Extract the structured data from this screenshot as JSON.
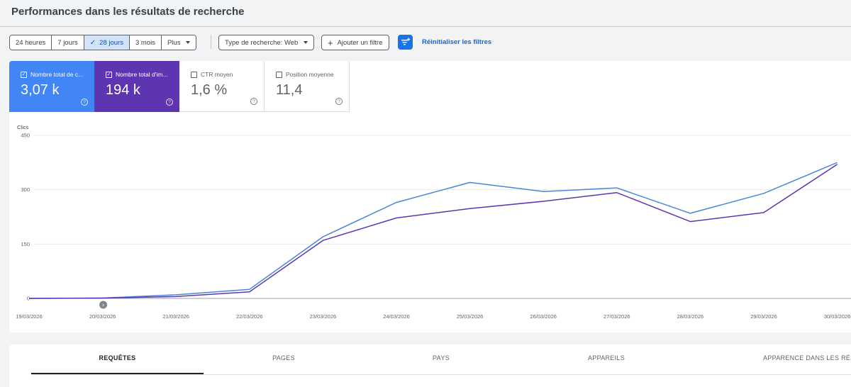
{
  "page": {
    "title": "Performances dans les résultats de recherche"
  },
  "toolbar": {
    "ranges": [
      {
        "label": "24 heures",
        "active": false
      },
      {
        "label": "7 jours",
        "active": false
      },
      {
        "label": "28 jours",
        "active": true
      },
      {
        "label": "3 mois",
        "active": false
      },
      {
        "label": "Plus",
        "active": false
      }
    ],
    "search_type_label": "Type de recherche: Web",
    "add_filter_label": "Ajouter un filtre",
    "reset_label": "Réinitialiser les filtres",
    "plus_symbol": "+",
    "check_symbol": "✓"
  },
  "metrics": [
    {
      "label": "Nombre total de c...",
      "value": "3,07 k",
      "checked": true,
      "color": "#4285f4"
    },
    {
      "label": "Nombre total d'im...",
      "value": "194 k",
      "checked": true,
      "color": "#5e35b1"
    },
    {
      "label": "CTR moyen",
      "value": "1,6 %",
      "checked": false
    },
    {
      "label": "Position moyenne",
      "value": "11,4",
      "checked": false
    }
  ],
  "help_symbol": "?",
  "chart_data": {
    "type": "line",
    "ylabel": "Clics",
    "yticks": [
      "450",
      "300",
      "150",
      "0"
    ],
    "ylim": [
      0,
      450
    ],
    "x": [
      "19/03/2026",
      "20/03/2026",
      "21/03/2026",
      "22/03/2026",
      "23/03/2026",
      "24/03/2026",
      "25/03/2026",
      "26/03/2026",
      "27/03/2026",
      "28/03/2026",
      "29/03/2026",
      "30/03/2026"
    ],
    "series": [
      {
        "color": "#4a86d8",
        "values": [
          0,
          1,
          10,
          25,
          170,
          265,
          320,
          295,
          305,
          235,
          290,
          375
        ]
      },
      {
        "color": "#5e35b1",
        "values": [
          0,
          1,
          5,
          18,
          160,
          222,
          248,
          268,
          292,
          212,
          237,
          370
        ]
      }
    ],
    "annotation_marker": "›",
    "grid": true
  },
  "tabs": [
    {
      "label": "REQUÊTES",
      "active": true
    },
    {
      "label": "PAGES",
      "active": false
    },
    {
      "label": "PAYS",
      "active": false
    },
    {
      "label": "APPAREILS",
      "active": false
    },
    {
      "label": "APPARENCE DANS LES RÉSU",
      "active": false
    }
  ]
}
